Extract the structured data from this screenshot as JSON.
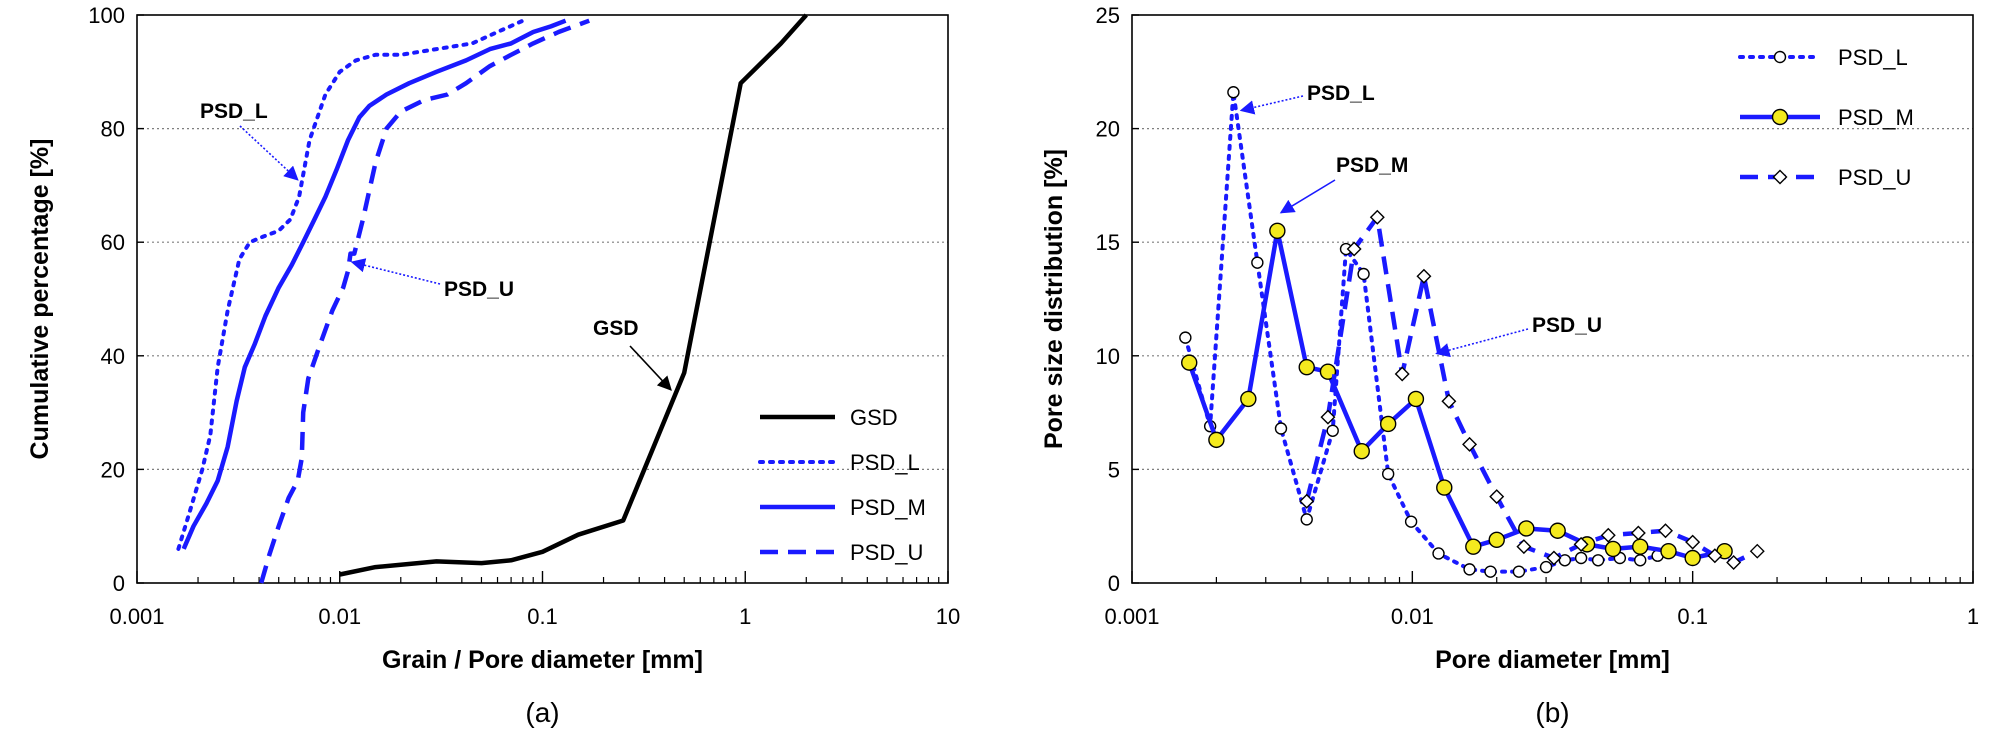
{
  "chart_data": [
    {
      "id": "a",
      "type": "line",
      "panel_label": "(a)",
      "xlabel": "Grain / Pore diameter [mm]",
      "ylabel": "Cumulative percentage [%]",
      "xscale": "log",
      "xlim": [
        0.001,
        10
      ],
      "ylim": [
        0,
        100
      ],
      "x_ticks": [
        "0.001",
        "0.01",
        "0.1",
        "1",
        "10"
      ],
      "y_ticks": [
        "0",
        "20",
        "40",
        "60",
        "80",
        "100"
      ],
      "grid": "horizontal-dotted",
      "legend_position": "bottom-right",
      "series": [
        {
          "name": "GSD",
          "style": "solid",
          "color": "#000000",
          "x": [
            0.01,
            0.015,
            0.02,
            0.03,
            0.05,
            0.07,
            0.1,
            0.15,
            0.25,
            0.5,
            0.95,
            1.5,
            2.0
          ],
          "y": [
            1.5,
            2.8,
            3.2,
            3.8,
            3.5,
            4.0,
            5.5,
            8.5,
            11,
            37,
            88,
            95,
            100
          ]
        },
        {
          "name": "PSD_L",
          "style": "dotted",
          "color": "#1a1aff",
          "x": [
            0.0016,
            0.0018,
            0.0021,
            0.0023,
            0.0025,
            0.0028,
            0.0032,
            0.0036,
            0.0042,
            0.005,
            0.0057,
            0.0063,
            0.0071,
            0.0085,
            0.01,
            0.012,
            0.015,
            0.02,
            0.03,
            0.045,
            0.06,
            0.08
          ],
          "y": [
            6,
            12,
            20,
            26,
            38,
            48,
            57,
            60,
            61,
            62,
            64,
            68,
            78,
            86,
            90,
            92,
            93,
            93,
            94,
            95,
            97,
            99
          ]
        },
        {
          "name": "PSD_M",
          "style": "solid",
          "color": "#1a1aff",
          "x": [
            0.0017,
            0.0019,
            0.0022,
            0.0025,
            0.0028,
            0.0031,
            0.0034,
            0.0038,
            0.0043,
            0.005,
            0.0058,
            0.0066,
            0.0075,
            0.0085,
            0.0097,
            0.011,
            0.0125,
            0.014,
            0.017,
            0.022,
            0.03,
            0.042,
            0.055,
            0.07,
            0.09,
            0.11,
            0.13
          ],
          "y": [
            6,
            10,
            14,
            18,
            24,
            32,
            38,
            42,
            47,
            52,
            56,
            60,
            64,
            68,
            73,
            78,
            82,
            84,
            86,
            88,
            90,
            92,
            94,
            95,
            97,
            98,
            99
          ]
        },
        {
          "name": "PSD_U",
          "style": "dashed",
          "color": "#1a1aff",
          "x": [
            0.0041,
            0.0045,
            0.005,
            0.0056,
            0.0062,
            0.0065,
            0.0066,
            0.007,
            0.008,
            0.0092,
            0.0104,
            0.011,
            0.0113,
            0.0118,
            0.013,
            0.015,
            0.017,
            0.02,
            0.026,
            0.034,
            0.042,
            0.055,
            0.07,
            0.09,
            0.12,
            0.17
          ],
          "y": [
            0,
            5,
            10,
            15,
            18,
            22,
            30,
            36,
            42,
            48,
            52,
            55,
            58,
            58,
            64,
            74,
            80,
            83,
            85,
            86,
            88,
            91,
            93,
            95,
            97,
            99
          ]
        }
      ],
      "annotations": [
        {
          "text": "PSD_L",
          "target_series": "PSD_L"
        },
        {
          "text": "PSD_U",
          "target_series": "PSD_U"
        },
        {
          "text": "GSD",
          "target_series": "GSD"
        }
      ]
    },
    {
      "id": "b",
      "type": "line",
      "panel_label": "(b)",
      "xlabel": "Pore diameter [mm]",
      "ylabel": "Pore size distribution [%]",
      "xscale": "log",
      "xlim": [
        0.001,
        1
      ],
      "ylim": [
        0,
        25
      ],
      "x_ticks": [
        "0.001",
        "0.01",
        "0.1",
        "1"
      ],
      "y_ticks": [
        "0",
        "5",
        "10",
        "15",
        "20",
        "25"
      ],
      "grid": "horizontal-dotted",
      "legend_position": "top-right",
      "series": [
        {
          "name": "PSD_L",
          "style": "dotted",
          "marker": "circle-open",
          "color": "#1a1aff",
          "x": [
            0.00155,
            0.0019,
            0.0023,
            0.0028,
            0.0034,
            0.0042,
            0.0052,
            0.0058,
            0.0067,
            0.0082,
            0.0099,
            0.0124,
            0.016,
            0.019,
            0.024,
            0.03,
            0.035,
            0.04,
            0.046,
            0.055,
            0.065,
            0.075
          ],
          "y": [
            10.8,
            6.9,
            21.6,
            14.1,
            6.8,
            2.8,
            6.7,
            14.7,
            13.6,
            4.8,
            2.7,
            1.3,
            0.6,
            0.5,
            0.5,
            0.7,
            1.0,
            1.1,
            1.0,
            1.1,
            1.0,
            1.2
          ]
        },
        {
          "name": "PSD_M",
          "style": "solid",
          "marker": "circle-yellow",
          "color": "#1a1aff",
          "x": [
            0.0016,
            0.002,
            0.0026,
            0.0033,
            0.0042,
            0.005,
            0.0066,
            0.0082,
            0.0103,
            0.013,
            0.0165,
            0.02,
            0.0255,
            0.033,
            0.042,
            0.052,
            0.065,
            0.082,
            0.1,
            0.13
          ],
          "y": [
            9.7,
            6.3,
            8.1,
            15.5,
            9.5,
            9.3,
            5.8,
            7.0,
            8.1,
            4.2,
            1.6,
            1.9,
            2.4,
            2.3,
            1.7,
            1.5,
            1.6,
            1.4,
            1.1,
            1.4
          ]
        },
        {
          "name": "PSD_U",
          "style": "dashed",
          "marker": "diamond-open",
          "color": "#1a1aff",
          "x": [
            0.0042,
            0.005,
            0.0062,
            0.0075,
            0.0092,
            0.011,
            0.0135,
            0.016,
            0.02,
            0.025,
            0.032,
            0.04,
            0.05,
            0.064,
            0.08,
            0.1,
            0.12,
            0.14,
            0.17
          ],
          "y": [
            3.6,
            7.3,
            14.7,
            16.1,
            9.2,
            13.5,
            8.0,
            6.1,
            3.8,
            1.6,
            1.1,
            1.7,
            2.1,
            2.2,
            2.3,
            1.8,
            1.2,
            0.9,
            1.4
          ]
        }
      ],
      "annotations": [
        {
          "text": "PSD_L",
          "target_series": "PSD_L"
        },
        {
          "text": "PSD_M",
          "target_series": "PSD_M"
        },
        {
          "text": "PSD_U",
          "target_series": "PSD_U"
        }
      ]
    }
  ]
}
